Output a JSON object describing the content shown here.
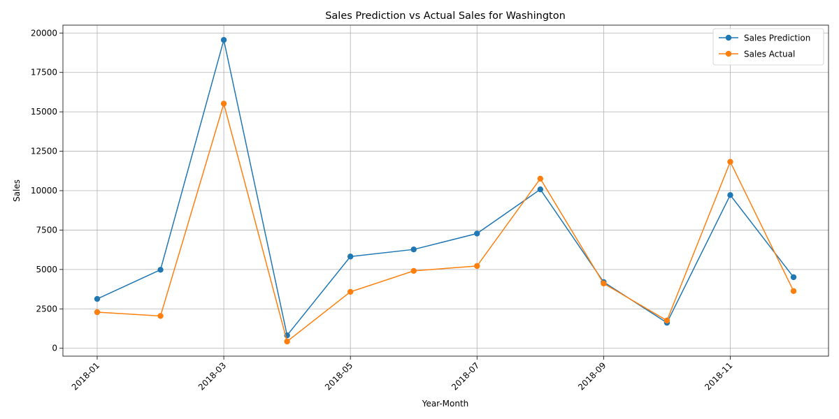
{
  "chart_data": {
    "type": "line",
    "title": "Sales Prediction vs Actual Sales for Washington",
    "xlabel": "Year-Month",
    "ylabel": "Sales",
    "x": [
      "2018-01",
      "2018-02",
      "2018-03",
      "2018-04",
      "2018-05",
      "2018-06",
      "2018-07",
      "2018-08",
      "2018-09",
      "2018-10",
      "2018-11",
      "2018-12"
    ],
    "x_ticks": [
      "2018-01",
      "2018-03",
      "2018-05",
      "2018-07",
      "2018-09",
      "2018-11"
    ],
    "y_ticks": [
      0,
      2500,
      5000,
      7500,
      10000,
      12500,
      15000,
      17500,
      20000
    ],
    "ylim": [
      -500,
      20500
    ],
    "grid": true,
    "legend_position": "top-right",
    "series": [
      {
        "name": "Sales Prediction",
        "color": "#1f77b4",
        "marker": "circle",
        "values": [
          3130,
          4980,
          19560,
          820,
          5820,
          6270,
          7280,
          10080,
          4200,
          1620,
          9720,
          4510
        ]
      },
      {
        "name": "Sales Actual",
        "color": "#ff7f0e",
        "marker": "circle",
        "values": [
          2290,
          2050,
          15520,
          430,
          3580,
          4910,
          5220,
          10760,
          4110,
          1760,
          11830,
          3630
        ]
      }
    ]
  }
}
